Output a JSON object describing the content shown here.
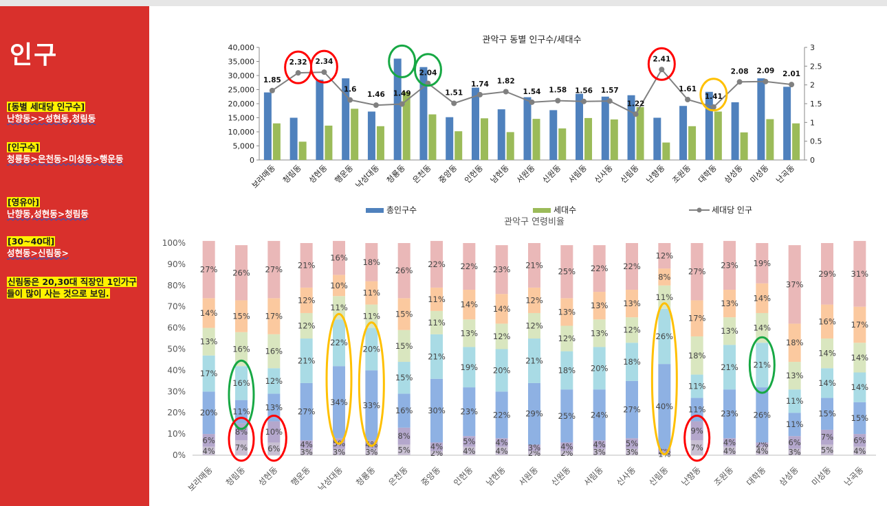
{
  "sidebar": {
    "title": "인구",
    "notes": [
      {
        "heading": "[동별 세대당 인구수]",
        "body": "난향동>>성현동,청림동"
      },
      {
        "heading": "[인구수]",
        "body": "청룡동>은천동>미성동>행운동"
      },
      {
        "heading": "[영유아]",
        "body": "난향동,성현동>청림동"
      },
      {
        "heading": "[30~40대]",
        "body": "성현동>신림동>"
      },
      {
        "heading": "신림동은 20,30대 직장인 1인가구들이 많이 사는 것으로 보임.",
        "body": ""
      }
    ]
  },
  "colors": {
    "sidebar_bg": "#d9302c",
    "highlight": "#fff200",
    "circle_red": "#ff0000",
    "circle_green": "#17a844",
    "circle_orange": "#ffc000"
  },
  "chart_data": [
    {
      "type": "bar",
      "title": "관악구 동별 인구수/세대수",
      "categories": [
        "보라매동",
        "청림동",
        "성현동",
        "행운동",
        "낙성대동",
        "청룡동",
        "은천동",
        "중앙동",
        "인헌동",
        "남현동",
        "서원동",
        "신원동",
        "서림동",
        "신사동",
        "신림동",
        "난향동",
        "조원동",
        "대학동",
        "삼성동",
        "미성동",
        "난곡동"
      ],
      "series": [
        {
          "name": "총인구수",
          "axis": "left",
          "color": "#4f81bd",
          "values": [
            24000,
            15000,
            28500,
            29000,
            17200,
            36000,
            33000,
            15200,
            25700,
            18000,
            22300,
            17700,
            23500,
            22500,
            23000,
            15000,
            19200,
            24200,
            20500,
            29000,
            26000
          ]
        },
        {
          "name": "세대수",
          "axis": "left",
          "color": "#9bbb59",
          "values": [
            13000,
            6500,
            12200,
            18200,
            12000,
            24200,
            16200,
            10200,
            14800,
            9900,
            14600,
            11200,
            14900,
            14400,
            18800,
            6200,
            12000,
            17200,
            9800,
            14500,
            13000
          ]
        },
        {
          "name": "세대당 인구",
          "axis": "right",
          "type": "line",
          "color": "#808080",
          "values": [
            1.85,
            2.32,
            2.34,
            1.6,
            1.46,
            1.49,
            2.04,
            1.51,
            1.74,
            1.82,
            1.54,
            1.58,
            1.56,
            1.57,
            1.22,
            2.41,
            1.61,
            1.41,
            2.08,
            2.09,
            2.01
          ]
        }
      ],
      "ylim": [
        0,
        40000
      ],
      "y2lim": [
        0,
        3
      ],
      "yticks": [
        "0",
        "5,000",
        "10,000",
        "15,000",
        "20,000",
        "25,000",
        "30,000",
        "35,000",
        "40,000"
      ],
      "y2ticks": [
        "0",
        "0.5",
        "1",
        "1.5",
        "2",
        "2.5",
        "3"
      ],
      "legend": "bottom",
      "annotations": [
        {
          "category": "청림동",
          "color": "red"
        },
        {
          "category": "성현동",
          "color": "red"
        },
        {
          "category": "청룡동",
          "color": "green"
        },
        {
          "category": "은천동",
          "color": "green"
        },
        {
          "category": "난향동",
          "color": "red"
        },
        {
          "category": "대학동",
          "color": "orange"
        }
      ]
    },
    {
      "type": "bar",
      "stacked": true,
      "title": "관악구 연령비율",
      "categories": [
        "보라매동",
        "청림동",
        "성현동",
        "행운동",
        "낙성대동",
        "청룡동",
        "은천동",
        "중앙동",
        "인헌동",
        "남현동",
        "서원동",
        "신원동",
        "서림동",
        "신사동",
        "신림동",
        "난향동",
        "조원동",
        "대학동",
        "삼성동",
        "미성동",
        "난곡동"
      ],
      "series": [
        {
          "color": "#c9c0d3",
          "values": [
            4,
            7,
            6,
            3,
            3,
            3,
            5,
            2,
            4,
            4,
            2,
            2,
            3,
            3,
            1,
            7,
            4,
            4,
            3,
            5,
            4
          ]
        },
        {
          "color": "#b4a7cc",
          "values": [
            6,
            8,
            10,
            4,
            5,
            4,
            8,
            4,
            5,
            4,
            3,
            4,
            4,
            5,
            2,
            9,
            4,
            2,
            6,
            7,
            6
          ]
        },
        {
          "color": "#8eb1e3",
          "values": [
            20,
            11,
            13,
            27,
            34,
            33,
            16,
            30,
            23,
            22,
            29,
            25,
            24,
            27,
            40,
            11,
            23,
            26,
            11,
            15,
            15
          ]
        },
        {
          "color": "#a9dbe5",
          "values": [
            17,
            16,
            12,
            21,
            22,
            20,
            15,
            21,
            19,
            20,
            21,
            18,
            20,
            18,
            26,
            11,
            21,
            21,
            11,
            14,
            14
          ]
        },
        {
          "color": "#d9e6bf",
          "values": [
            13,
            16,
            16,
            12,
            11,
            11,
            15,
            11,
            13,
            12,
            12,
            12,
            13,
            12,
            11,
            18,
            13,
            14,
            13,
            14,
            14
          ]
        },
        {
          "color": "#fbc99f",
          "values": [
            14,
            15,
            17,
            12,
            10,
            11,
            15,
            11,
            14,
            14,
            12,
            13,
            13,
            13,
            8,
            17,
            13,
            14,
            18,
            16,
            17
          ]
        },
        {
          "color": "#eab8b8",
          "values": [
            27,
            26,
            27,
            21,
            16,
            18,
            26,
            22,
            22,
            23,
            21,
            25,
            22,
            22,
            12,
            27,
            23,
            19,
            37,
            29,
            31
          ]
        }
      ],
      "ylim": [
        0,
        100
      ],
      "yticks": [
        "0%",
        "10%",
        "20%",
        "30%",
        "40%",
        "50%",
        "60%",
        "70%",
        "80%",
        "90%",
        "100%"
      ],
      "annotations": [
        {
          "category": "청림동",
          "segments": [
            2,
            3
          ],
          "color": "green"
        },
        {
          "category": "청림동",
          "segments": [
            0,
            1
          ],
          "color": "red"
        },
        {
          "category": "성현동",
          "segments": [
            0,
            1
          ],
          "color": "red"
        },
        {
          "category": "낙성대동",
          "segments": [
            2,
            3
          ],
          "color": "orange"
        },
        {
          "category": "청룡동",
          "segments": [
            2,
            3
          ],
          "color": "orange"
        },
        {
          "category": "신림동",
          "segments": [
            2,
            3
          ],
          "color": "orange"
        },
        {
          "category": "난향동",
          "segments": [
            0,
            1
          ],
          "color": "red"
        },
        {
          "category": "대학동",
          "segments": [
            3
          ],
          "color": "green"
        }
      ]
    }
  ]
}
